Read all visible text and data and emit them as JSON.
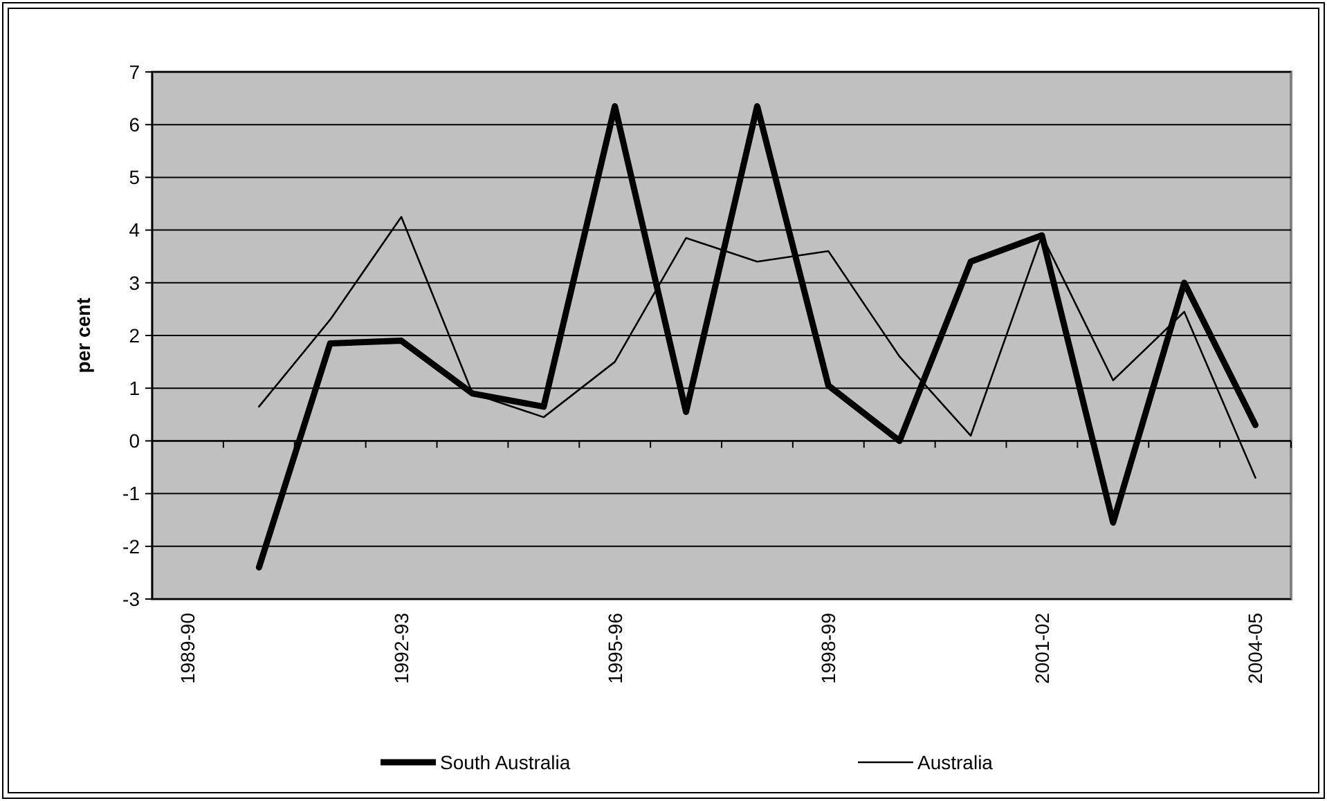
{
  "chart_data": {
    "type": "line",
    "ylabel": "per cent",
    "categories": [
      "1989-90",
      null,
      null,
      "1992-93",
      null,
      null,
      "1995-96",
      null,
      null,
      "1998-99",
      null,
      null,
      "2001-02",
      null,
      null,
      "2004-05"
    ],
    "series": [
      {
        "name": "South Australia",
        "color": "#000000",
        "values": [
          null,
          -2.4,
          1.85,
          1.9,
          0.9,
          0.65,
          6.35,
          0.55,
          6.35,
          1.05,
          0,
          3.4,
          3.9,
          -1.55,
          3.0,
          0.3
        ]
      },
      {
        "name": "Australia",
        "color": "#000000",
        "values": [
          null,
          0.65,
          2.3,
          4.25,
          0.9,
          0.45,
          1.5,
          3.85,
          3.4,
          3.6,
          1.6,
          0.1,
          3.9,
          1.15,
          2.45,
          -0.7
        ]
      }
    ],
    "ylim": [
      -3,
      7
    ],
    "yticks": [
      -3,
      -2,
      -1,
      0,
      1,
      2,
      3,
      4,
      5,
      6,
      7
    ],
    "grid": "y",
    "legend": "bottom",
    "marker": "none",
    "line_style": "solid"
  }
}
